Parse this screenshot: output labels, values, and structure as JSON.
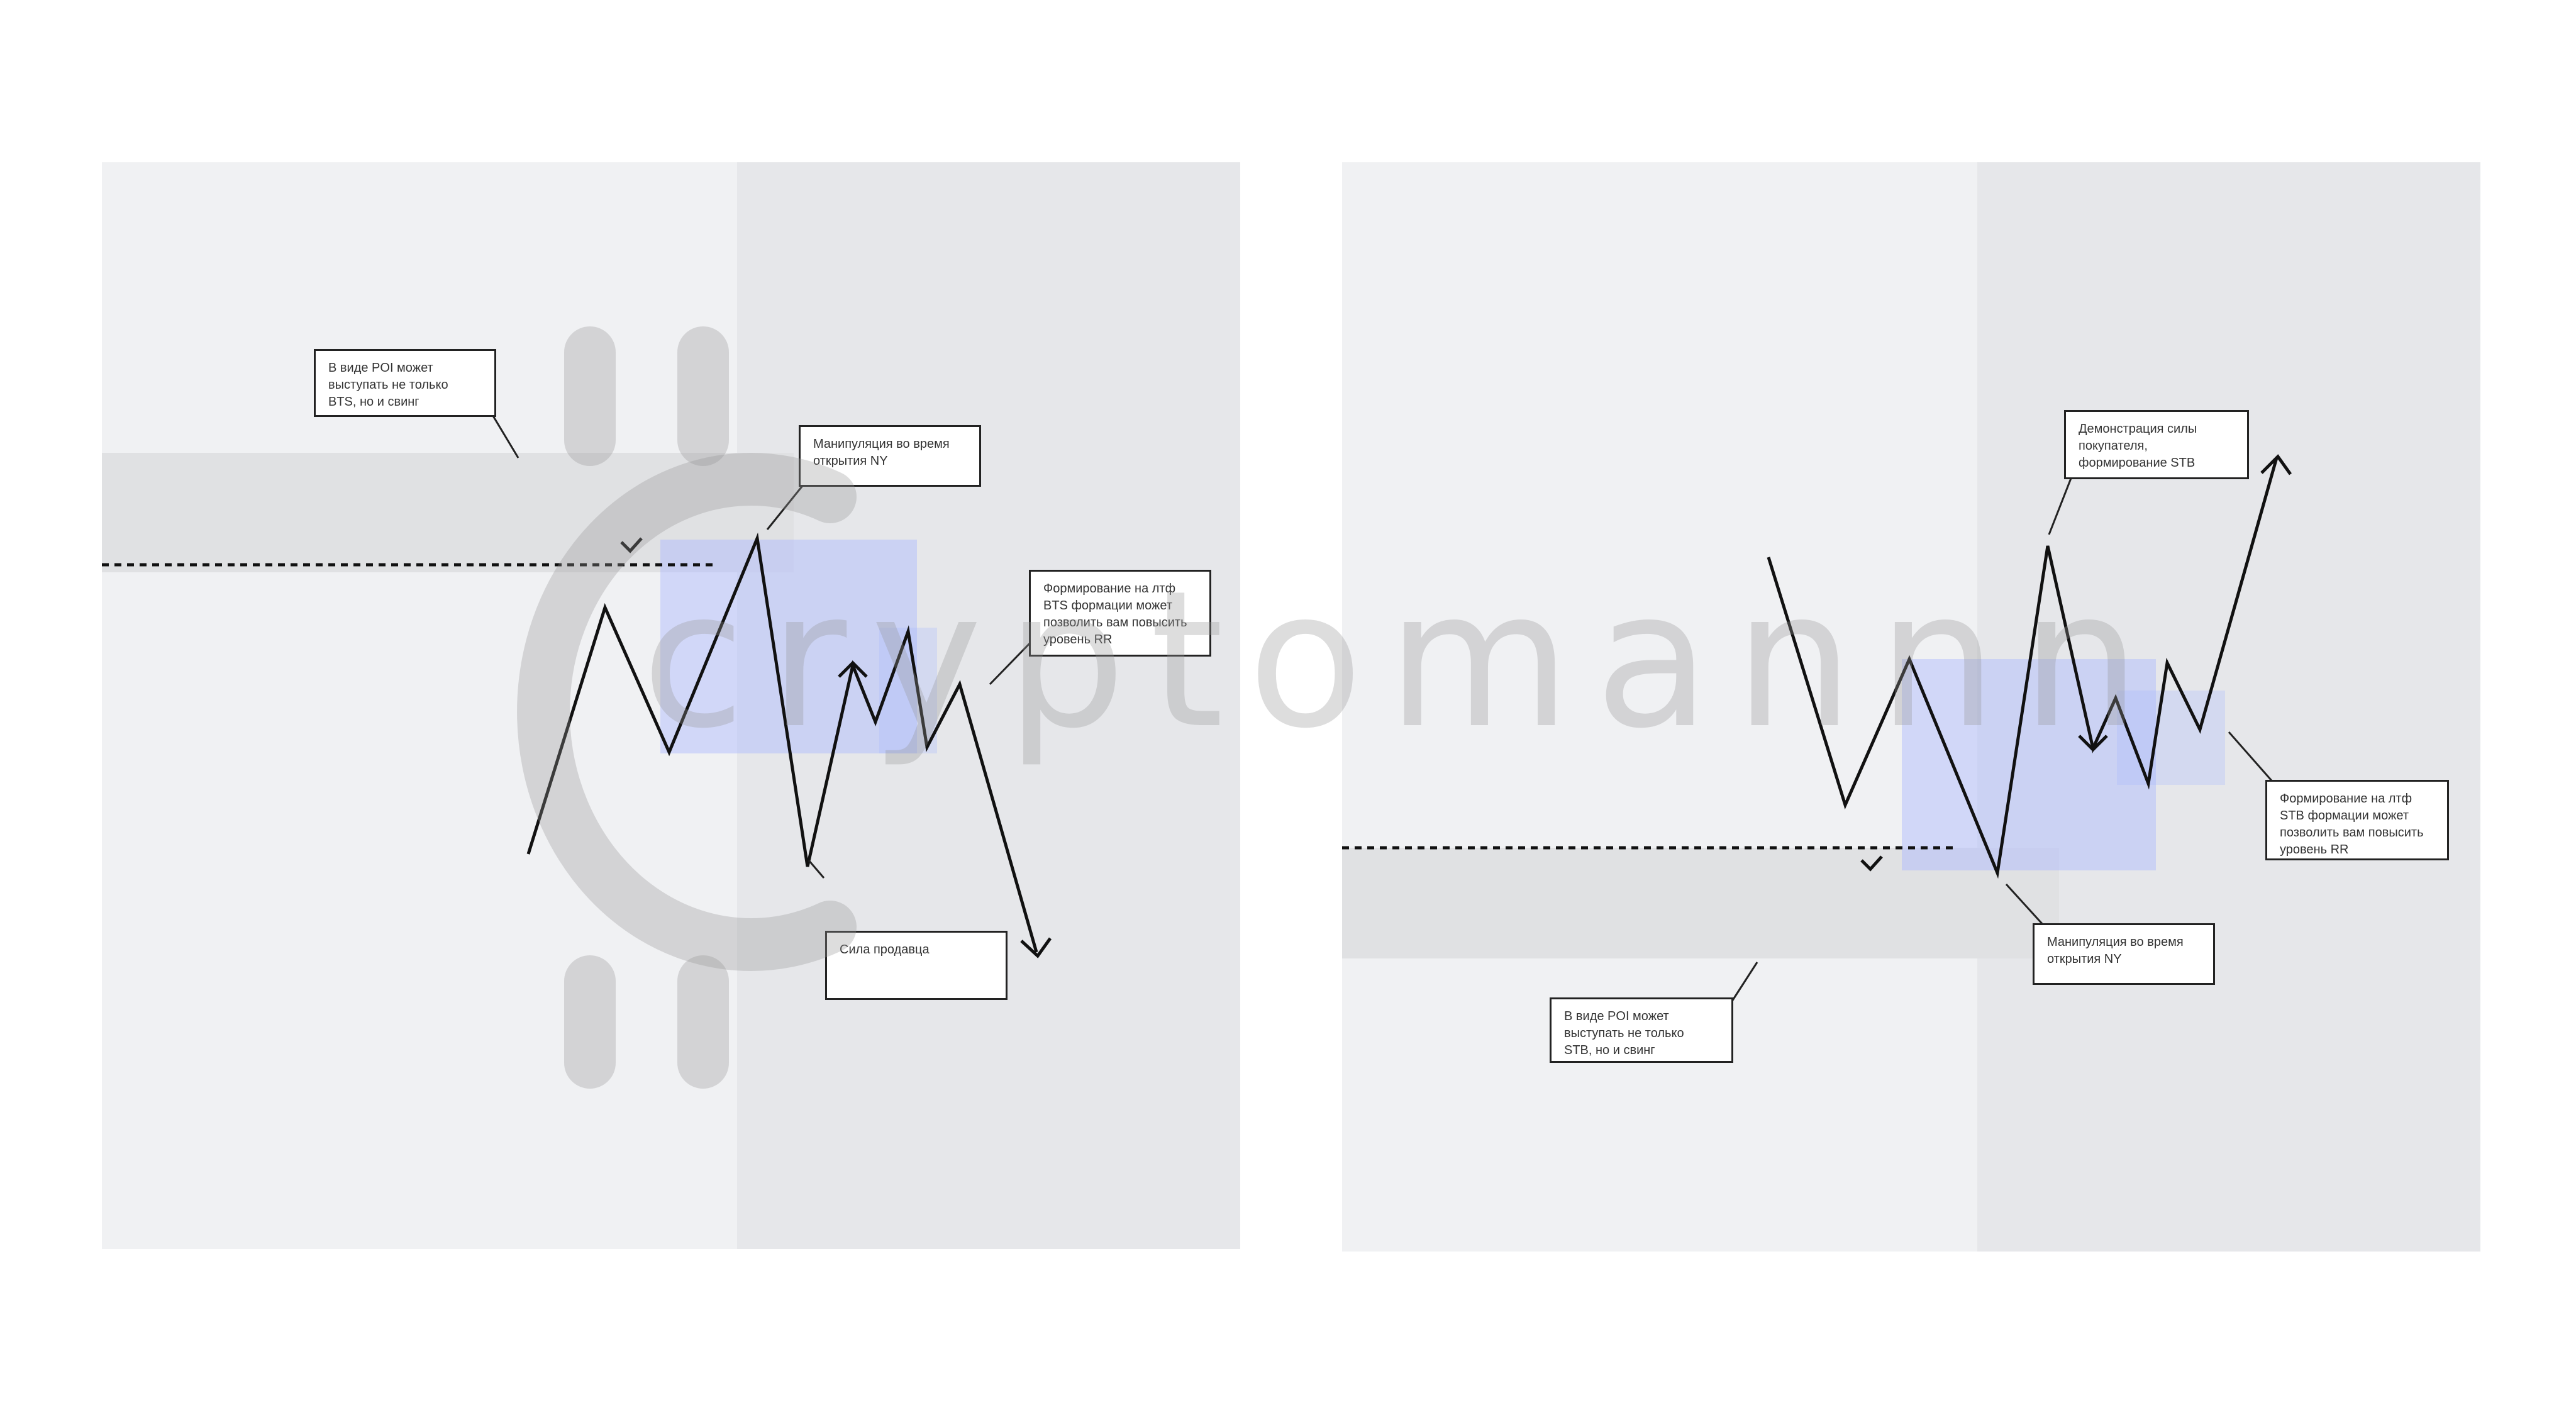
{
  "watermark": {
    "text": "cryptomannn",
    "icon": "bitcoin-symbol-icon"
  },
  "left_scheme": {
    "callouts": {
      "poi": "В виде POI может\nвыступать не только\nBTS, но и свинг",
      "manipulation": "Манипуляция во время\nоткрытия NY",
      "ltf_formation": "Формирование на лтф\nBTS формации может\nпозволить вам повысить\nуровень RR",
      "seller_strength": "Сила продавца"
    },
    "check_mark_icon": "checkmark-icon",
    "arrow_icon": "arrow-down-icon"
  },
  "right_scheme": {
    "callouts": {
      "buyer_strength": "Демонстрация силы\nпокупателя,\nформирование STB",
      "ltf_formation": "Формирование на лтф\nSTB формации может\nпозволить вам повысить\nуровень RR",
      "manipulation": "Манипуляция во время\nоткрытия NY",
      "poi": "В виде POI может\nвыступать не только\nSTB, но и свинг"
    },
    "check_mark_icon": "checkmark-icon",
    "arrow_icon": "arrow-up-icon"
  },
  "colors": {
    "panel_background": "#f0f1f3",
    "session_zone": "#e6e7ea",
    "poi_band": "#e0e1e3",
    "highlight_zone": "#aab8ff",
    "line": "#111111"
  }
}
